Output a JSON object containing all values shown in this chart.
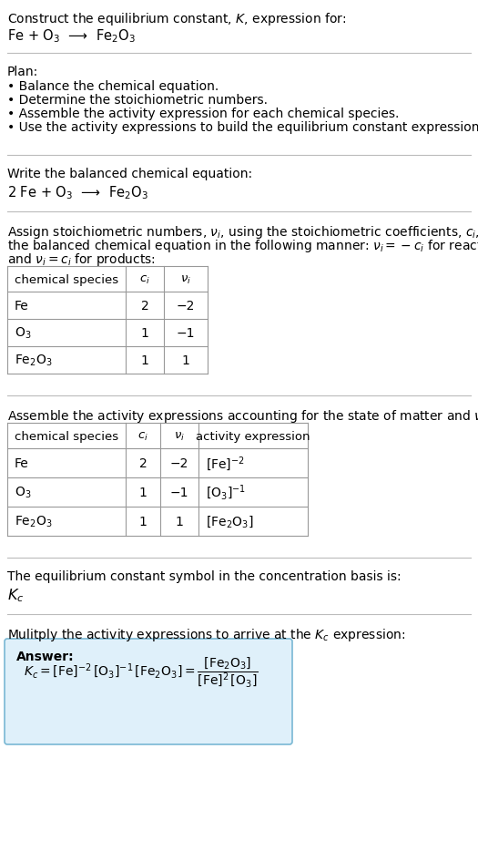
{
  "title_line1": "Construct the equilibrium constant, $K$, expression for:",
  "title_line2": "Fe + O$_3$  ⟶  Fe$_2$O$_3$",
  "plan_header": "Plan:",
  "plan_bullets": [
    "• Balance the chemical equation.",
    "• Determine the stoichiometric numbers.",
    "• Assemble the activity expression for each chemical species.",
    "• Use the activity expressions to build the equilibrium constant expression."
  ],
  "balanced_eq_header": "Write the balanced chemical equation:",
  "balanced_eq": "2 Fe + O$_3$  ⟶  Fe$_2$O$_3$",
  "stoich_line1": "Assign stoichiometric numbers, $\\nu_i$, using the stoichiometric coefficients, $c_i$, from",
  "stoich_line2": "the balanced chemical equation in the following manner: $\\nu_i = -c_i$ for reactants",
  "stoich_line3": "and $\\nu_i = c_i$ for products:",
  "table1_headers": [
    "chemical species",
    "$c_i$",
    "$\\nu_i$"
  ],
  "table1_rows": [
    [
      "Fe",
      "2",
      "−2"
    ],
    [
      "O$_3$",
      "1",
      "−1"
    ],
    [
      "Fe$_2$O$_3$",
      "1",
      "1"
    ]
  ],
  "activity_header": "Assemble the activity expressions accounting for the state of matter and $\\nu_i$:",
  "table2_headers": [
    "chemical species",
    "$c_i$",
    "$\\nu_i$",
    "activity expression"
  ],
  "table2_rows": [
    [
      "Fe",
      "2",
      "−2",
      "$[\\mathrm{Fe}]^{-2}$"
    ],
    [
      "O$_3$",
      "1",
      "−1",
      "$[\\mathrm{O}_3]^{-1}$"
    ],
    [
      "Fe$_2$O$_3$",
      "1",
      "1",
      "$[\\mathrm{Fe}_2\\mathrm{O}_3]$"
    ]
  ],
  "kc_header": "The equilibrium constant symbol in the concentration basis is:",
  "kc_symbol": "$K_c$",
  "multiply_header": "Mulitply the activity expressions to arrive at the $K_c$ expression:",
  "answer_label": "Answer:",
  "bg_color": "#ffffff",
  "text_color": "#000000",
  "line_color": "#bbbbbb",
  "table_border_color": "#999999",
  "answer_box_color": "#dff0fa",
  "answer_box_border": "#7ab8d4",
  "font_size": 10.0,
  "fig_width": 5.25,
  "fig_height": 9.34
}
